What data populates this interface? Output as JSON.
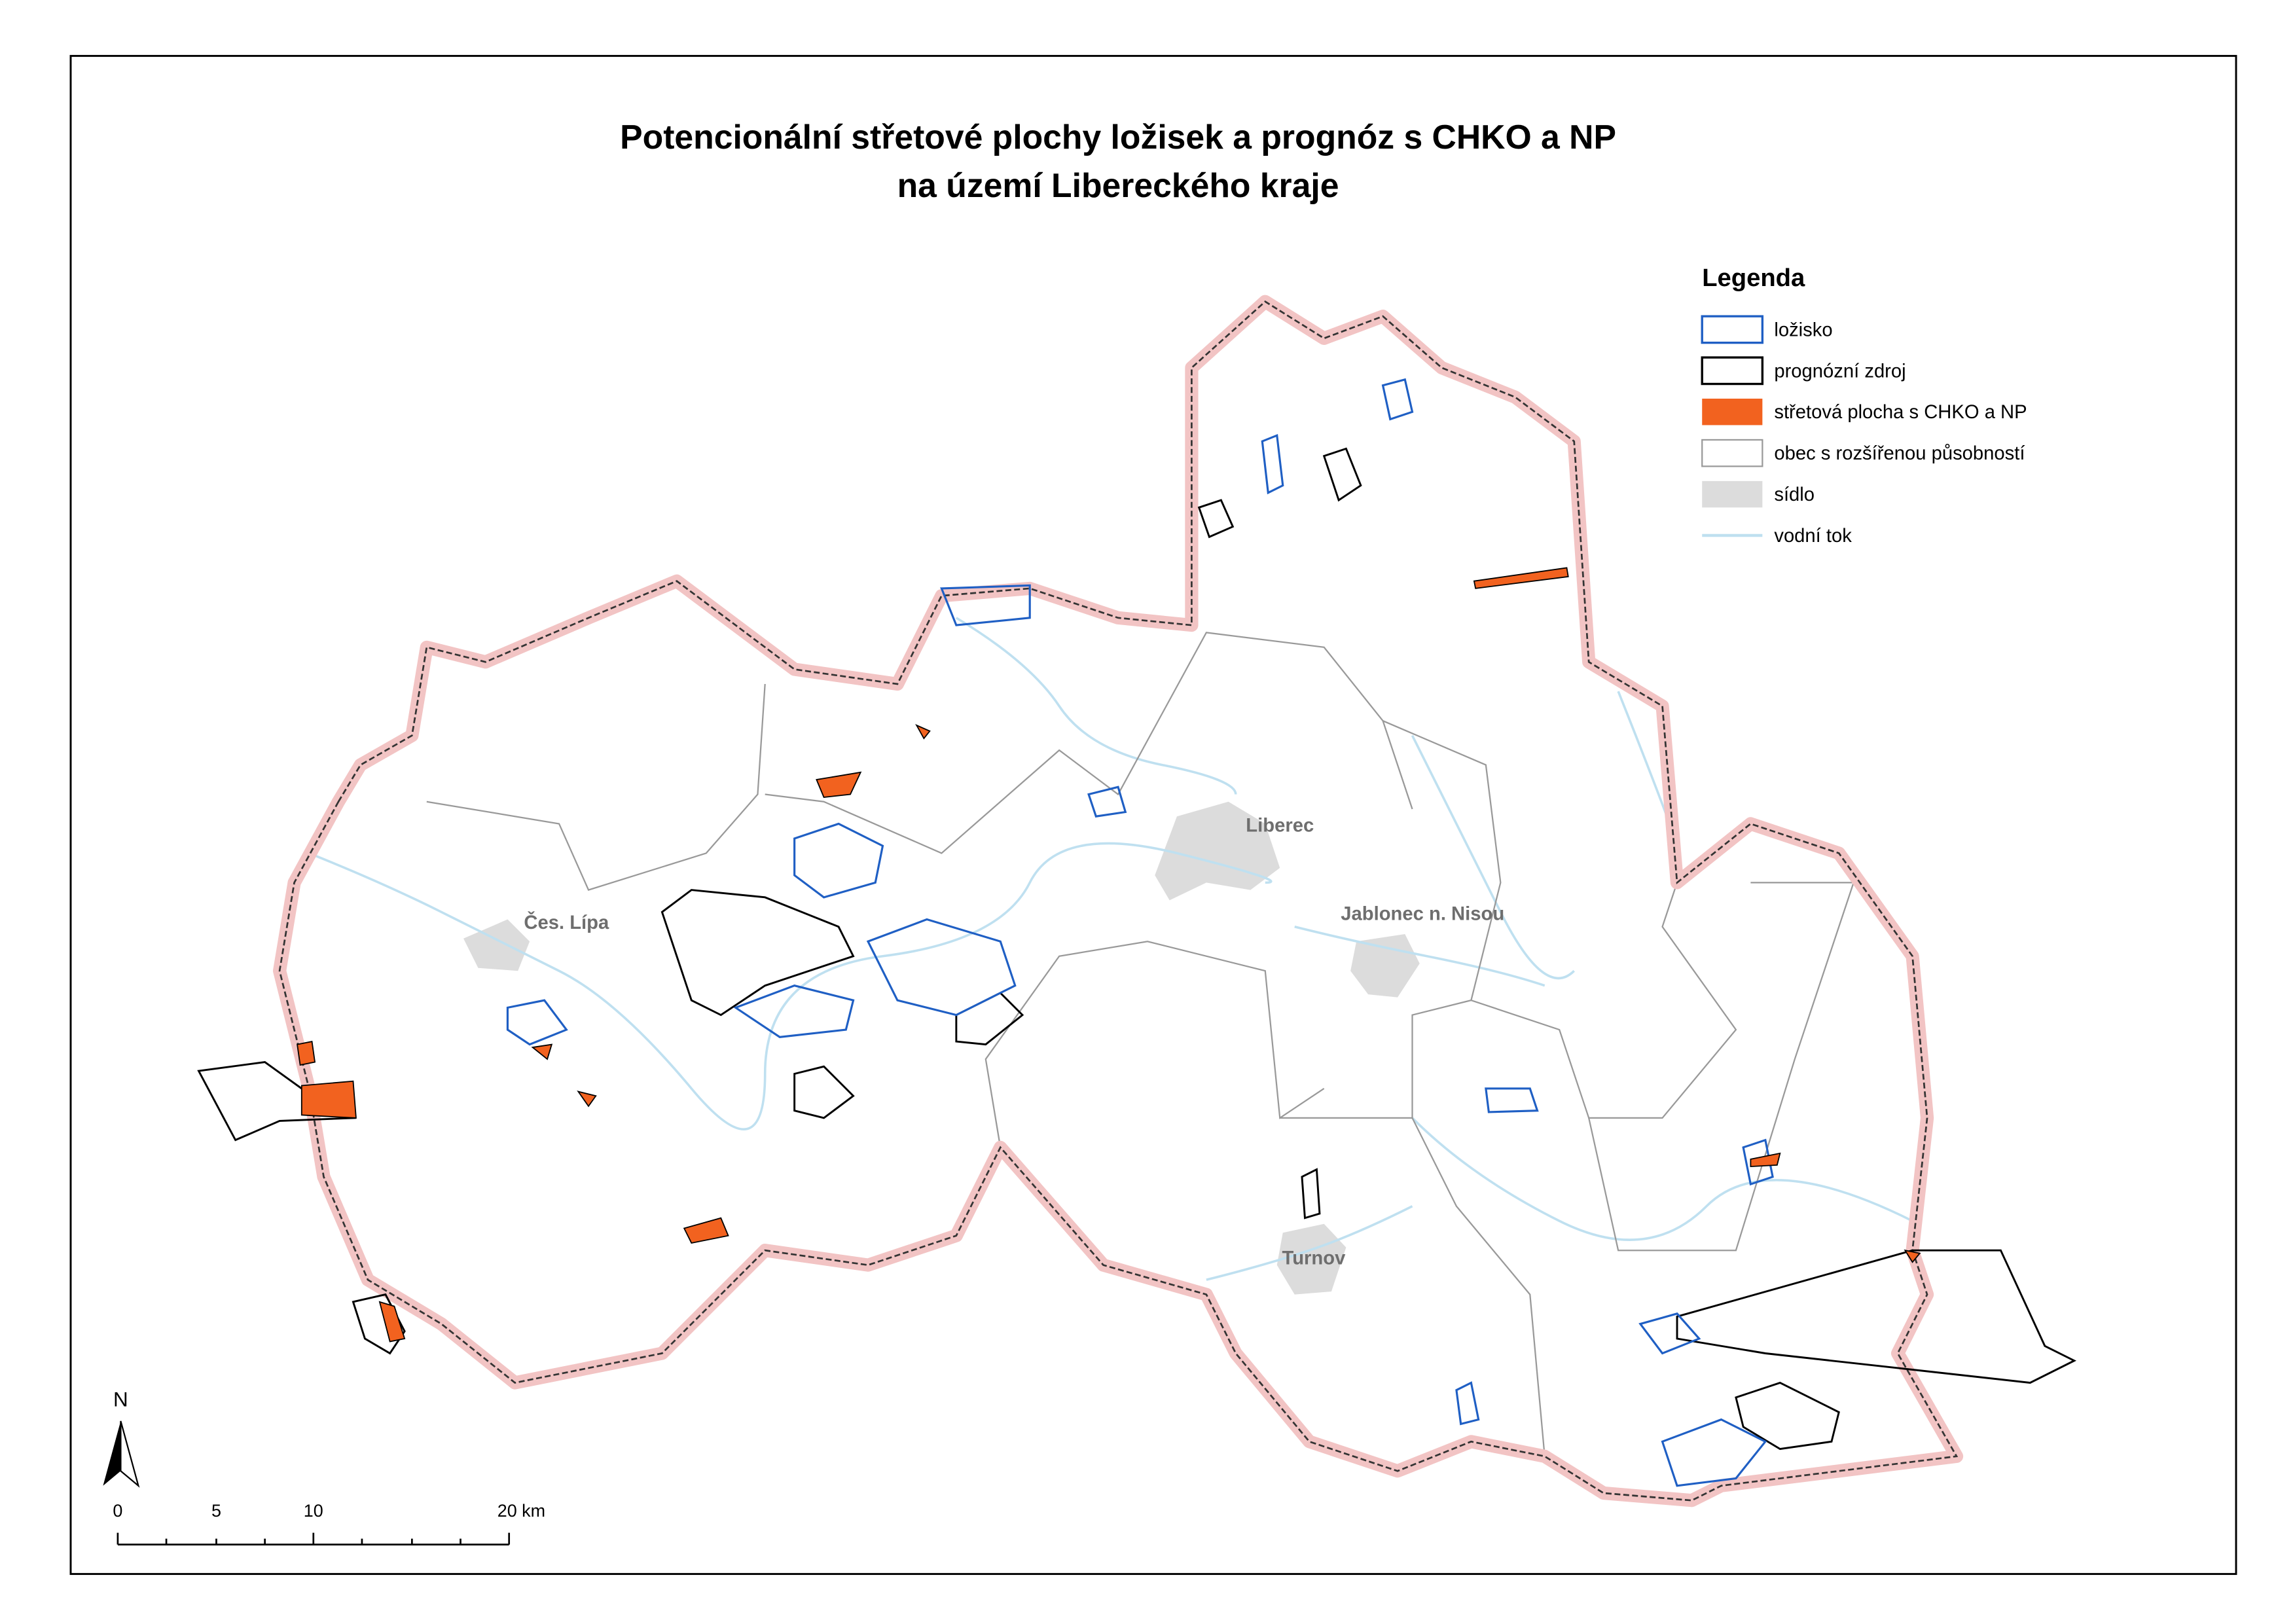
{
  "header": {
    "title_lines": [
      "Potencionální střetové plochy ložisek a prognóz s CHKO a NP",
      "na území Libereckého kraje"
    ]
  },
  "legend": {
    "title": "Legenda",
    "items": [
      "ložisko",
      "prognózní zdroj",
      "střetová plocha s CHKO a NP",
      "obec s rozšířenou působností",
      "sídlo",
      "vodní tok"
    ]
  },
  "places": [
    "Liberec",
    "Čes. Lípa",
    "Jablonec n. Nisou",
    "Turnov"
  ],
  "north_arrow": "N",
  "scale_bar": {
    "labels": [
      "0",
      "5",
      "10",
      "20 km"
    ]
  }
}
